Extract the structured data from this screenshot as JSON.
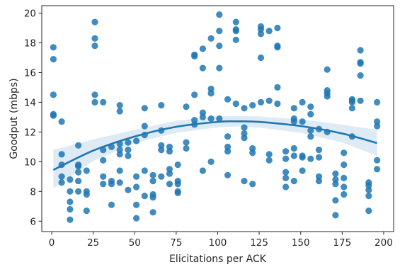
{
  "chart_data": {
    "type": "scatter",
    "xlabel": "Elicitations per ACK",
    "ylabel": "Goodput (mbps)",
    "xlim": [
      -6,
      206
    ],
    "ylim": [
      5.3,
      20.5
    ],
    "xticks": [
      0,
      25,
      50,
      75,
      100,
      125,
      150,
      175,
      200
    ],
    "yticks": [
      6,
      8,
      10,
      12,
      14,
      16,
      18,
      20
    ],
    "grid": false,
    "legend": "none",
    "colors": {
      "points": "#1f77b4",
      "fit_line": "#1f77b4",
      "confidence_band": "#1f77b4"
    },
    "points": [
      [
        1,
        17.7
      ],
      [
        1,
        16.9
      ],
      [
        1,
        14.5
      ],
      [
        1,
        13.2
      ],
      [
        1,
        13.1
      ],
      [
        6,
        12.7
      ],
      [
        6,
        10.5
      ],
      [
        6,
        9.8
      ],
      [
        6,
        9.0
      ],
      [
        6,
        8.6
      ],
      [
        11,
        8.8
      ],
      [
        11,
        8.0
      ],
      [
        11,
        7.3
      ],
      [
        11,
        6.8
      ],
      [
        11,
        6.1
      ],
      [
        16,
        11.1
      ],
      [
        16,
        9.8
      ],
      [
        16,
        9.7
      ],
      [
        16,
        9.3
      ],
      [
        16,
        8.7
      ],
      [
        16,
        8.0
      ],
      [
        21,
        9.4
      ],
      [
        21,
        8.0
      ],
      [
        21,
        7.8
      ],
      [
        21,
        6.7
      ],
      [
        26,
        19.4
      ],
      [
        26,
        18.3
      ],
      [
        26,
        17.8
      ],
      [
        26,
        14.5
      ],
      [
        26,
        14.0
      ],
      [
        31,
        14.0
      ],
      [
        31,
        10.8
      ],
      [
        31,
        10.1
      ],
      [
        31,
        9.0
      ],
      [
        31,
        8.5
      ],
      [
        36,
        11.0
      ],
      [
        36,
        8.7
      ],
      [
        36,
        8.5
      ],
      [
        36,
        7.1
      ],
      [
        41,
        13.8
      ],
      [
        41,
        13.4
      ],
      [
        41,
        11.2
      ],
      [
        41,
        10.8
      ],
      [
        41,
        10.5
      ],
      [
        41,
        9.4
      ],
      [
        41,
        8.6
      ],
      [
        46,
        11.3
      ],
      [
        46,
        10.8
      ],
      [
        46,
        10.4
      ],
      [
        46,
        8.1
      ],
      [
        51,
        11.4
      ],
      [
        51,
        9.0
      ],
      [
        51,
        8.3
      ],
      [
        51,
        7.1
      ],
      [
        51,
        6.2
      ],
      [
        56,
        13.6
      ],
      [
        56,
        12.4
      ],
      [
        56,
        11.8
      ],
      [
        56,
        9.4
      ],
      [
        56,
        7.7
      ],
      [
        61,
        9.1
      ],
      [
        61,
        8.7
      ],
      [
        61,
        7.8
      ],
      [
        61,
        7.6
      ],
      [
        61,
        6.6
      ],
      [
        66,
        13.8
      ],
      [
        66,
        12.1
      ],
      [
        66,
        11.1
      ],
      [
        66,
        10.8
      ],
      [
        66,
        9.0
      ],
      [
        71,
        11.0
      ],
      [
        71,
        10.7
      ],
      [
        71,
        9.5
      ],
      [
        71,
        9.2
      ],
      [
        71,
        8.5
      ],
      [
        76,
        9.8
      ],
      [
        76,
        8.7
      ],
      [
        76,
        8.5
      ],
      [
        76,
        8.0
      ],
      [
        76,
        7.9
      ],
      [
        81,
        13.7
      ],
      [
        81,
        11.3
      ],
      [
        81,
        10.9
      ],
      [
        86,
        17.2
      ],
      [
        86,
        17.1
      ],
      [
        86,
        14.5
      ],
      [
        86,
        12.8
      ],
      [
        86,
        12.5
      ],
      [
        91,
        17.6
      ],
      [
        91,
        16.3
      ],
      [
        91,
        13.3
      ],
      [
        91,
        13.0
      ],
      [
        91,
        9.4
      ],
      [
        96,
        18.3
      ],
      [
        96,
        14.9
      ],
      [
        96,
        14.6
      ],
      [
        96,
        12.9
      ],
      [
        96,
        10.0
      ],
      [
        101,
        19.9
      ],
      [
        101,
        18.8
      ],
      [
        101,
        17.8
      ],
      [
        101,
        16.3
      ],
      [
        101,
        12.9
      ],
      [
        106,
        14.2
      ],
      [
        106,
        11.7
      ],
      [
        106,
        11.0
      ],
      [
        106,
        10.7
      ],
      [
        106,
        9.1
      ],
      [
        111,
        19.4
      ],
      [
        111,
        18.9
      ],
      [
        111,
        18.8
      ],
      [
        111,
        18.2
      ],
      [
        111,
        13.9
      ],
      [
        116,
        13.6
      ],
      [
        116,
        12.3
      ],
      [
        116,
        11.9
      ],
      [
        116,
        11.6
      ],
      [
        116,
        8.7
      ],
      [
        121,
        13.8
      ],
      [
        121,
        10.9
      ],
      [
        121,
        10.6
      ],
      [
        121,
        8.5
      ],
      [
        126,
        19.1
      ],
      [
        126,
        18.9
      ],
      [
        126,
        18.6
      ],
      [
        126,
        17.0
      ],
      [
        126,
        14.0
      ],
      [
        131,
        18.8
      ],
      [
        131,
        14.1
      ],
      [
        131,
        10.5
      ],
      [
        131,
        10.1
      ],
      [
        136,
        19.0
      ],
      [
        136,
        17.8
      ],
      [
        136,
        17.7
      ],
      [
        136,
        15.0
      ],
      [
        136,
        13.9
      ],
      [
        141,
        10.7
      ],
      [
        141,
        10.2
      ],
      [
        141,
        9.3
      ],
      [
        141,
        8.9
      ],
      [
        141,
        8.3
      ],
      [
        146,
        13.6
      ],
      [
        146,
        12.9
      ],
      [
        146,
        12.7
      ],
      [
        146,
        10.9
      ],
      [
        146,
        10.4
      ],
      [
        146,
        8.7
      ],
      [
        151,
        14.0
      ],
      [
        151,
        12.7
      ],
      [
        151,
        10.4
      ],
      [
        151,
        10.3
      ],
      [
        151,
        9.4
      ],
      [
        156,
        13.7
      ],
      [
        156,
        13.2
      ],
      [
        156,
        12.1
      ],
      [
        156,
        11.7
      ],
      [
        156,
        10.2
      ],
      [
        161,
        12.2
      ],
      [
        161,
        10.8
      ],
      [
        161,
        10.3
      ],
      [
        161,
        9.0
      ],
      [
        161,
        8.7
      ],
      [
        166,
        16.2
      ],
      [
        166,
        14.8
      ],
      [
        166,
        14.6
      ],
      [
        166,
        14.4
      ],
      [
        166,
        12.0
      ],
      [
        171,
        9.2
      ],
      [
        171,
        8.8
      ],
      [
        171,
        8.5
      ],
      [
        171,
        7.4
      ],
      [
        171,
        6.4
      ],
      [
        176,
        10.6
      ],
      [
        176,
        9.8
      ],
      [
        176,
        8.9
      ],
      [
        176,
        8.3
      ],
      [
        176,
        7.8
      ],
      [
        181,
        14.2
      ],
      [
        181,
        14.1
      ],
      [
        181,
        14.0
      ],
      [
        181,
        13.6
      ],
      [
        181,
        11.7
      ],
      [
        186,
        17.5
      ],
      [
        186,
        16.7
      ],
      [
        186,
        16.6
      ],
      [
        186,
        15.8
      ],
      [
        186,
        14.1
      ],
      [
        191,
        8.6
      ],
      [
        191,
        8.4
      ],
      [
        191,
        8.1
      ],
      [
        191,
        7.7
      ],
      [
        191,
        6.7
      ],
      [
        196,
        14.0
      ],
      [
        196,
        12.7
      ],
      [
        196,
        12.4
      ],
      [
        196,
        10.1
      ],
      [
        196,
        9.5
      ]
    ],
    "fit": {
      "type": "quadratic",
      "x": [
        1,
        25,
        50,
        75,
        100,
        112,
        125,
        150,
        175,
        196
      ],
      "y": [
        9.45,
        10.75,
        11.7,
        12.35,
        12.68,
        12.72,
        12.68,
        12.4,
        11.9,
        11.25
      ],
      "ci_lower": [
        8.2,
        10.05,
        11.25,
        11.95,
        12.32,
        12.38,
        12.3,
        11.95,
        11.3,
        10.4
      ],
      "ci_upper": [
        10.8,
        11.5,
        12.15,
        12.75,
        13.05,
        13.08,
        13.05,
        12.85,
        12.5,
        12.15
      ]
    }
  }
}
